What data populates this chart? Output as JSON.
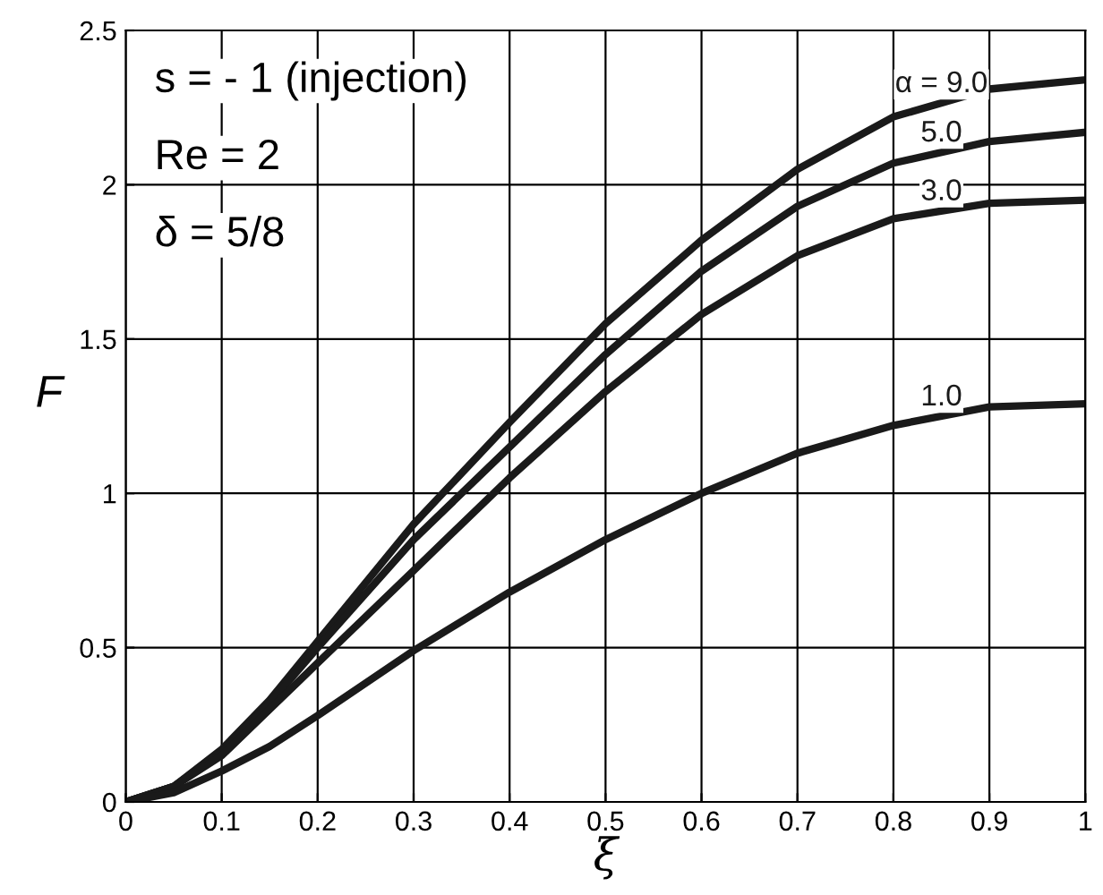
{
  "chart_data": {
    "type": "line",
    "xlabel": "ξ",
    "ylabel": "F",
    "x": [
      0,
      0.05,
      0.1,
      0.15,
      0.2,
      0.3,
      0.4,
      0.5,
      0.6,
      0.7,
      0.8,
      0.9,
      1.0
    ],
    "series": [
      {
        "name": "α = 9.0",
        "color": "#1a1a1a",
        "values": [
          0,
          0.05,
          0.17,
          0.33,
          0.52,
          0.9,
          1.23,
          1.55,
          1.82,
          2.05,
          2.22,
          2.31,
          2.34
        ]
      },
      {
        "name": "5.0",
        "color": "#1a1a1a",
        "values": [
          0,
          0.05,
          0.16,
          0.32,
          0.5,
          0.85,
          1.15,
          1.45,
          1.72,
          1.93,
          2.07,
          2.14,
          2.17
        ]
      },
      {
        "name": "3.0",
        "color": "#1a1a1a",
        "values": [
          0,
          0.05,
          0.15,
          0.3,
          0.45,
          0.75,
          1.05,
          1.33,
          1.58,
          1.77,
          1.89,
          1.94,
          1.95
        ]
      },
      {
        "name": "1.0",
        "color": "#1a1a1a",
        "values": [
          0,
          0.03,
          0.1,
          0.18,
          0.28,
          0.49,
          0.68,
          0.85,
          1.0,
          1.13,
          1.22,
          1.28,
          1.29
        ]
      }
    ],
    "xlim": [
      0,
      1
    ],
    "ylim": [
      0,
      2.5
    ],
    "xticks": [
      0,
      0.1,
      0.2,
      0.3,
      0.4,
      0.5,
      0.6,
      0.7,
      0.8,
      0.9,
      1
    ],
    "yticks": [
      0,
      0.5,
      1,
      1.5,
      2,
      2.5
    ],
    "annotations": [
      "s = - 1 (injection)",
      "Re = 2",
      "δ = 5/8"
    ],
    "grid": true,
    "marker": "none",
    "line_style": "solid"
  }
}
